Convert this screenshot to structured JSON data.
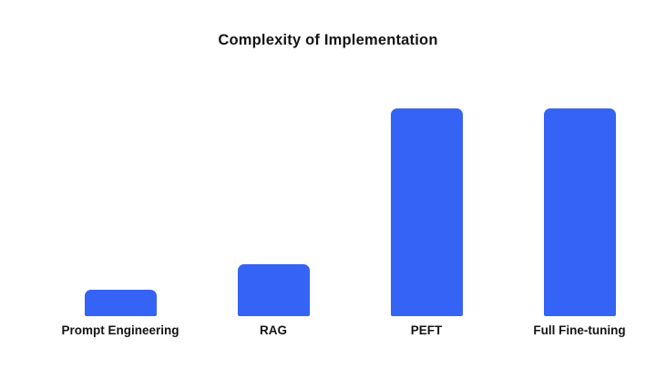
{
  "title": "Complexity of Implementation",
  "colors": {
    "background": "#ffffff",
    "bar": "#3563F5",
    "title_text": "#141414",
    "label_text": "#141414"
  },
  "chart_data": {
    "type": "bar",
    "title": "Complexity of Implementation",
    "categories": [
      "Prompt Engineering",
      "RAG",
      "PEFT",
      "Full Fine-tuning"
    ],
    "values": [
      1,
      2,
      8,
      8
    ],
    "xlabel": "",
    "ylabel": "",
    "ylim": [
      0,
      8
    ],
    "grid": false,
    "legend": false,
    "axes_visible": false,
    "bar_color": "#3563F5"
  }
}
